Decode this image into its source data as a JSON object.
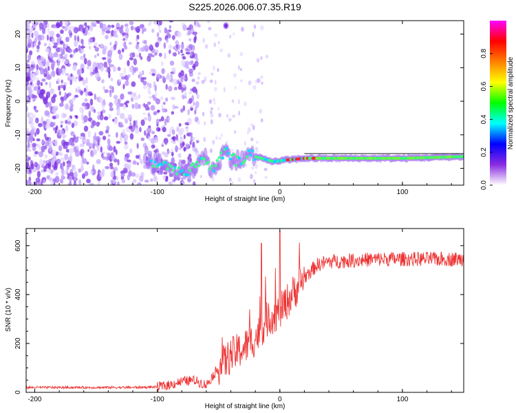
{
  "title": "S225.2026.006.07.35.R19",
  "chart_data": [
    {
      "type": "heatmap",
      "xlabel": "Height of straight line (km)",
      "ylabel": "Frequency (Hz)",
      "xlim": [
        -207,
        150
      ],
      "ylim": [
        -25,
        24
      ],
      "xticks": [
        -200,
        -100,
        0,
        100
      ],
      "yticks": [
        20,
        10,
        0,
        -10,
        -20
      ],
      "colorbar": {
        "label": "Normalized spectral amplitude",
        "range": [
          0,
          1
        ],
        "ticks": [
          "0.0",
          "0.2",
          "0.4",
          "0.6",
          "0.8"
        ],
        "colormap": [
          "#ffffff",
          "#8a2be2",
          "#0000ff",
          "#00ffff",
          "#00ff00",
          "#ffff00",
          "#ff8000",
          "#ff0000",
          "#ff00ff"
        ]
      },
      "ridge": [
        {
          "x": -105,
          "f": -18.5
        },
        {
          "x": -95,
          "f": -19
        },
        {
          "x": -85,
          "f": -20
        },
        {
          "x": -75,
          "f": -22
        },
        {
          "x": -62,
          "f": -16
        },
        {
          "x": -55,
          "f": -21
        },
        {
          "x": -45,
          "f": -15
        },
        {
          "x": -35,
          "f": -18
        },
        {
          "x": -25,
          "f": -16
        },
        {
          "x": -15,
          "f": -17
        },
        {
          "x": -5,
          "f": -18
        },
        {
          "x": 5,
          "f": -17.5
        },
        {
          "x": 20,
          "f": -17
        },
        {
          "x": 50,
          "f": -17
        },
        {
          "x": 100,
          "f": -17
        },
        {
          "x": 150,
          "f": -16.5
        }
      ]
    },
    {
      "type": "line",
      "xlabel": "Height of straight line (km)",
      "ylabel": "SNR (10 * v/v)",
      "xlim": [
        -207,
        150
      ],
      "ylim": [
        0,
        670
      ],
      "xticks": [
        -200,
        -100,
        0,
        100
      ],
      "yticks": [
        0,
        200,
        400,
        600
      ],
      "color": "#ee3333",
      "series": [
        {
          "name": "SNR",
          "x": [
            -207,
            -150,
            -120,
            -100,
            -90,
            -80,
            -70,
            -60,
            -50,
            -40,
            -30,
            -20,
            -10,
            0,
            10,
            20,
            30,
            40,
            60,
            80,
            100,
            120,
            150
          ],
          "y": [
            20,
            20,
            20,
            22,
            30,
            45,
            50,
            30,
            100,
            150,
            180,
            220,
            300,
            330,
            400,
            470,
            520,
            535,
            540,
            545,
            545,
            545,
            545
          ]
        }
      ],
      "annotations": [
        {
          "x": -15,
          "y": 610
        },
        {
          "x": 0,
          "y": 660
        }
      ]
    }
  ]
}
